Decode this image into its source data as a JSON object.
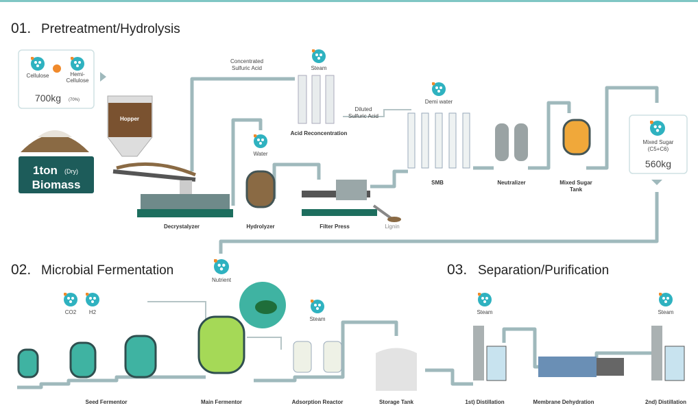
{
  "sections": [
    {
      "number": "01.",
      "title": "Pretreatment/Hydrolysis"
    },
    {
      "number": "02.",
      "title": "Microbial Fermentation"
    },
    {
      "number": "03.",
      "title": "Separation/Purification"
    }
  ],
  "feed": {
    "cellulose": "Cellulose",
    "hemicellulose": [
      "Hemi-",
      "Cellulose"
    ],
    "mass": "700kg",
    "share": "(70%)",
    "input": "1ton",
    "input_note": "(Dry)",
    "input_name": "Biomass"
  },
  "stage1": {
    "hopper": "Hopper",
    "acid": [
      "Concentrated",
      "Sulfuric Acid"
    ],
    "steam": "Steam",
    "acid_recon": "Acid Reconcentration",
    "diluted": [
      "Diluted",
      "Sulfuric Acid"
    ],
    "demi": "Demi water",
    "water": "Water",
    "decrystalyzer": "Decrystalyzer",
    "hydrolyzer": "Hydrolyzer",
    "filter": "Filter Press",
    "lignin": "Lignin",
    "smb": "SMB",
    "neutralizer": "Neutralizer",
    "sugar_tank": [
      "Mixed Sugar",
      "Tank"
    ]
  },
  "product": {
    "name": "Mixed Sugar",
    "note": "(C5+C6)",
    "mass": "560kg"
  },
  "stage2": {
    "nutrient": "Nutrient",
    "co2": "CO2",
    "h2": "H2",
    "steam": "Steam",
    "seed": "Seed Fermentor",
    "main": "Main Fermentor",
    "adsorption": "Adsorption Reactor",
    "storage": "Storage Tank"
  },
  "stage3": {
    "steam1": "Steam",
    "steam2": "Steam",
    "dist1": "1st) Distillation",
    "membrane": "Membrane Dehydration",
    "dist2": "2nd) Distillation"
  }
}
